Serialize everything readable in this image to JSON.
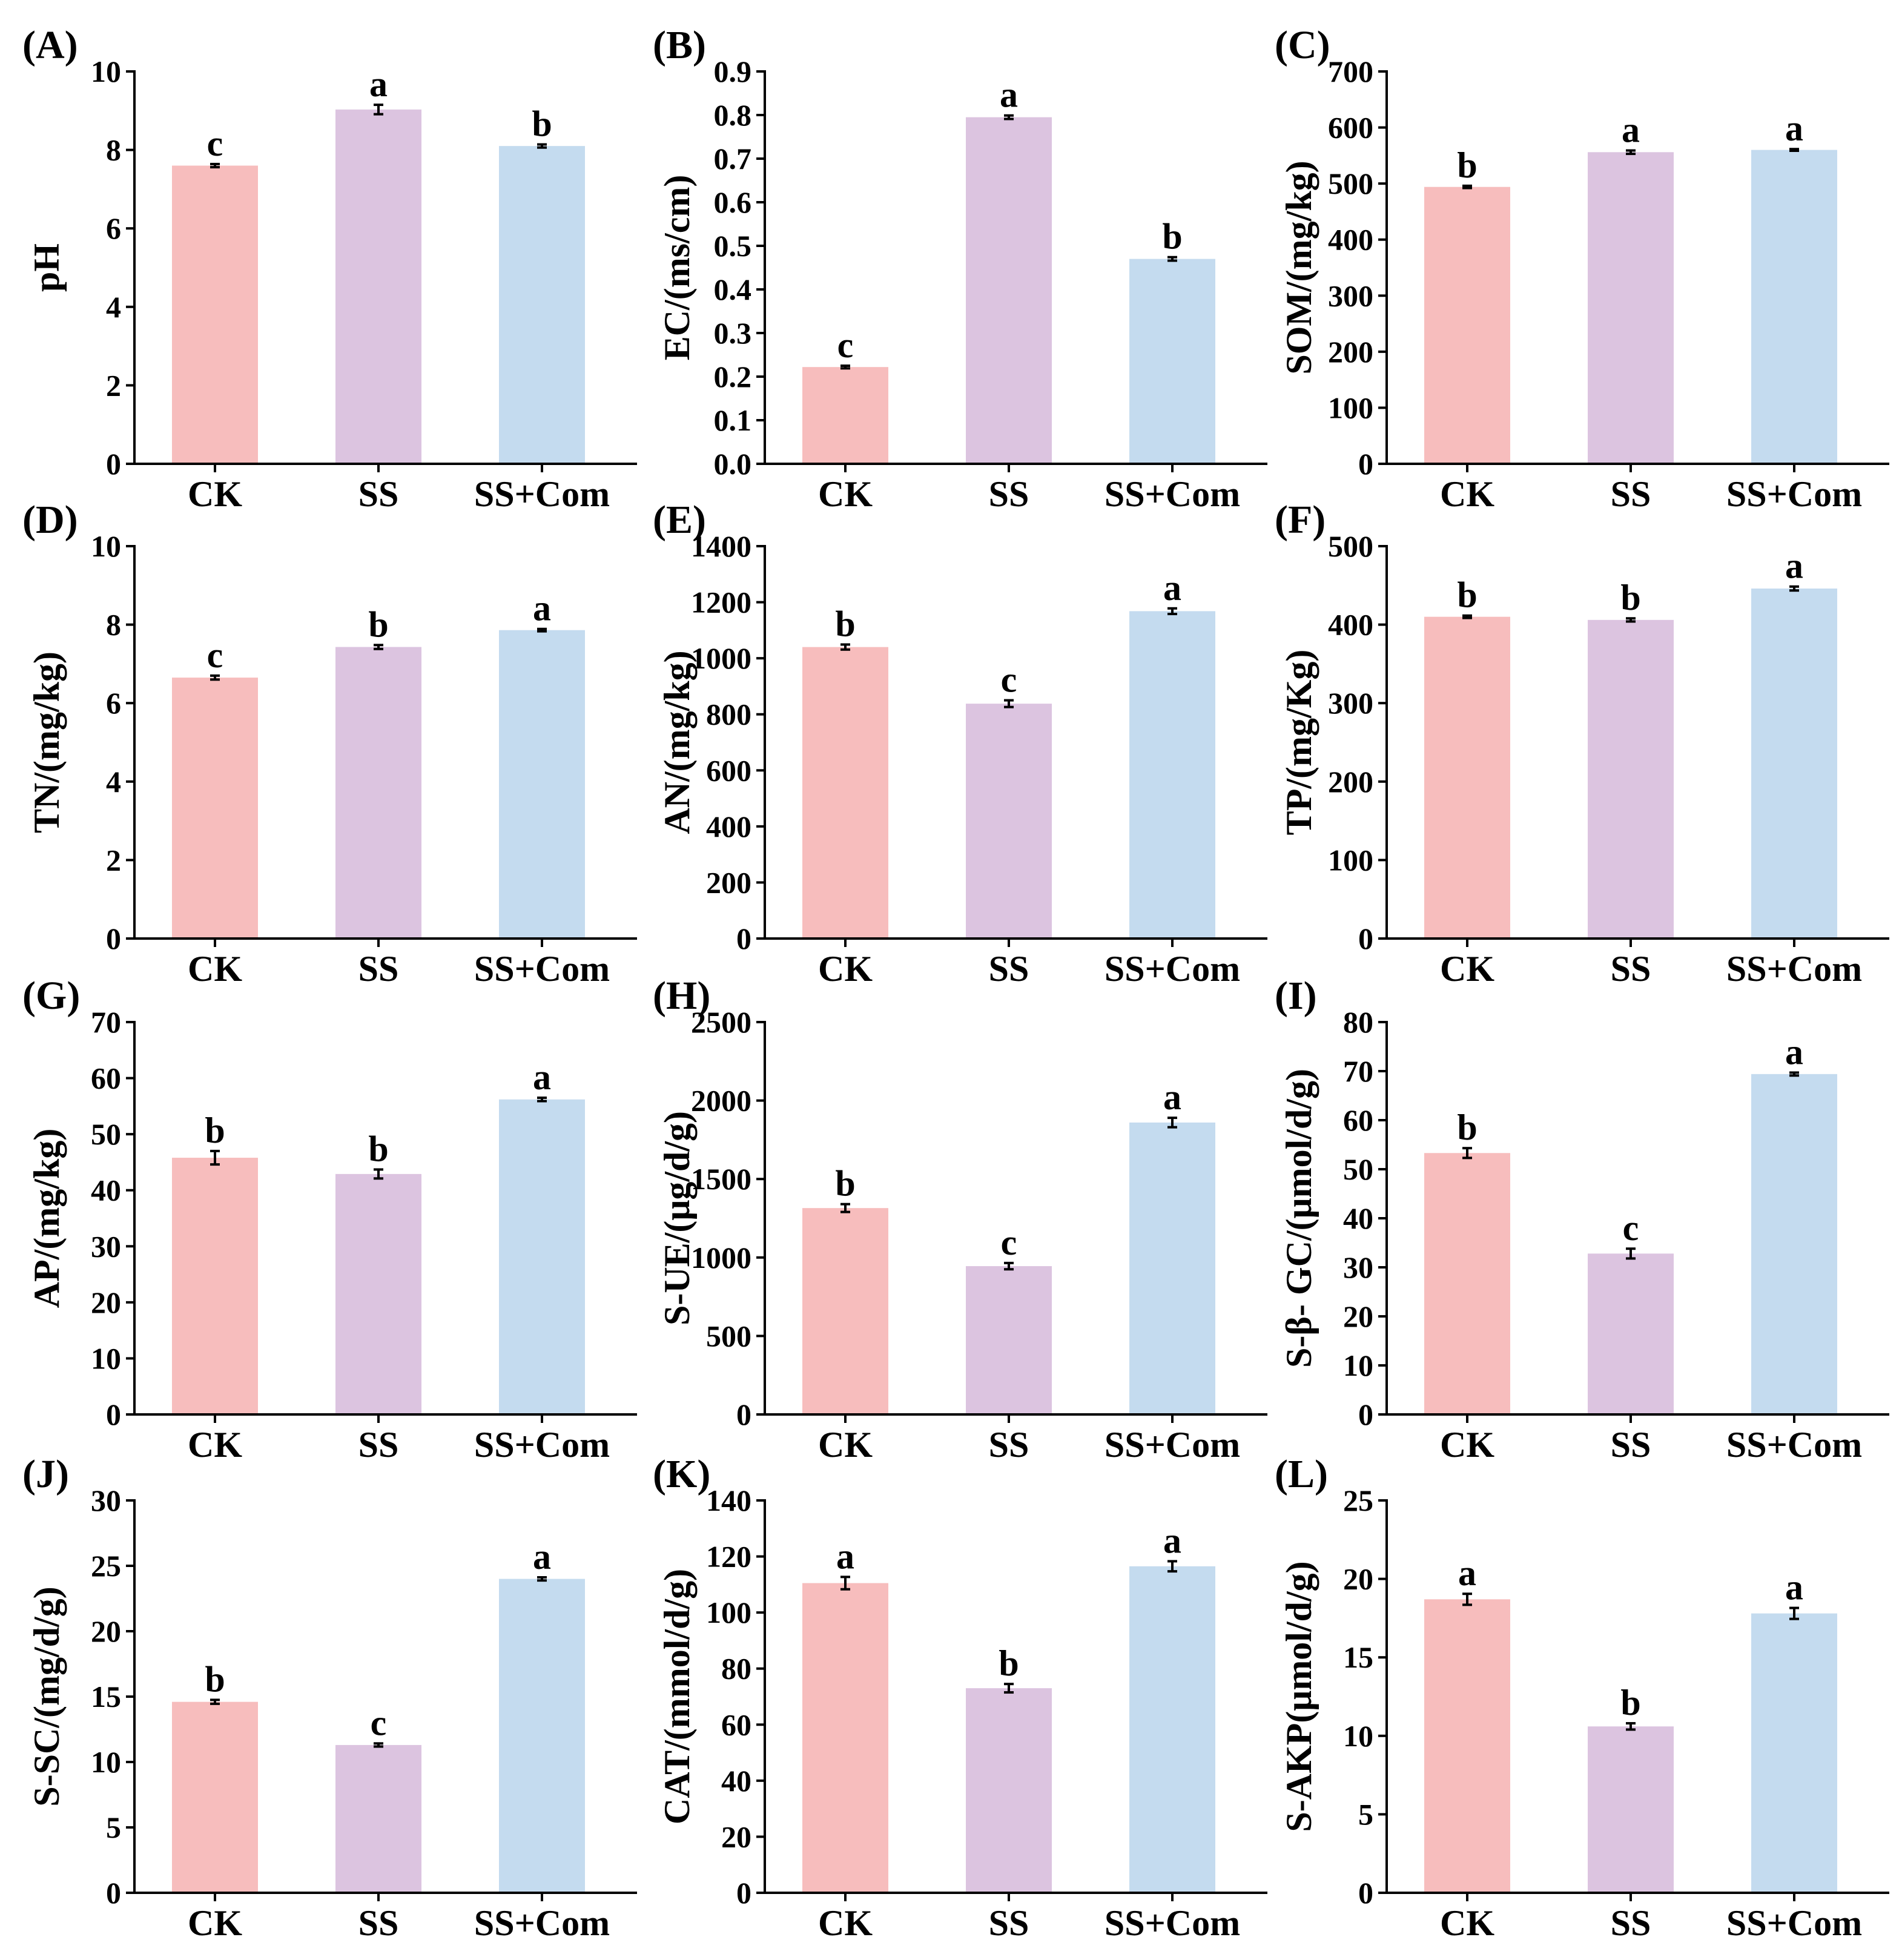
{
  "colors": {
    "CK": "#f7bdbd",
    "SS": "#dcc4e0",
    "SS+Com": "#c4dbef",
    "axis": "#000000"
  },
  "chart_data": [
    {
      "type": "bar",
      "panel": "(A)",
      "ylabel": "pH",
      "ylim": [
        0,
        10
      ],
      "yticks": [
        "0",
        "2",
        "4",
        "6",
        "8",
        "10"
      ],
      "categories": [
        "CK",
        "SS",
        "SS+Com"
      ],
      "values": [
        7.6,
        9.03,
        8.1
      ],
      "errors": [
        0.04,
        0.12,
        0.04
      ],
      "letters": [
        "c",
        "a",
        "b"
      ]
    },
    {
      "type": "bar",
      "panel": "(B)",
      "ylabel": "EC/(ms/cm)",
      "ylim": [
        0,
        0.9
      ],
      "yticks": [
        "0.0",
        "0.1",
        "0.2",
        "0.3",
        "0.4",
        "0.5",
        "0.6",
        "0.7",
        "0.8",
        "0.9"
      ],
      "categories": [
        "CK",
        "SS",
        "SS+Com"
      ],
      "values": [
        0.222,
        0.795,
        0.47
      ],
      "errors": [
        0.003,
        0.004,
        0.004
      ],
      "letters": [
        "c",
        "a",
        "b"
      ]
    },
    {
      "type": "bar",
      "panel": "(C)",
      "ylabel": "SOM/(mg/kg)",
      "ylim": [
        0,
        700
      ],
      "yticks": [
        "0",
        "100",
        "200",
        "300",
        "400",
        "500",
        "600",
        "700"
      ],
      "categories": [
        "CK",
        "SS",
        "SS+Com"
      ],
      "values": [
        494,
        556,
        560
      ],
      "errors": [
        2,
        3,
        1.5
      ],
      "letters": [
        "b",
        "a",
        "a"
      ]
    },
    {
      "type": "bar",
      "panel": "(D)",
      "ylabel": "TN/(mg/kg)",
      "ylim": [
        0,
        10
      ],
      "yticks": [
        "0",
        "2",
        "4",
        "6",
        "8",
        "10"
      ],
      "categories": [
        "CK",
        "SS",
        "SS+Com"
      ],
      "values": [
        6.65,
        7.43,
        7.86
      ],
      "errors": [
        0.05,
        0.05,
        0.03
      ],
      "letters": [
        "c",
        "b",
        "a"
      ]
    },
    {
      "type": "bar",
      "panel": "(E)",
      "ylabel": "AN/(mg/kg)",
      "ylim": [
        0,
        1400
      ],
      "yticks": [
        "0",
        "200",
        "400",
        "600",
        "800",
        "1000",
        "1200",
        "1400"
      ],
      "categories": [
        "CK",
        "SS",
        "SS+Com"
      ],
      "values": [
        1040,
        838,
        1168
      ],
      "errors": [
        9,
        12,
        10
      ],
      "letters": [
        "b",
        "c",
        "a"
      ]
    },
    {
      "type": "bar",
      "panel": "(F)",
      "ylabel": "TP/(mg/Kg)",
      "ylim": [
        0,
        500
      ],
      "yticks": [
        "0",
        "100",
        "200",
        "300",
        "400",
        "500"
      ],
      "categories": [
        "CK",
        "SS",
        "SS+Com"
      ],
      "values": [
        410,
        406,
        446
      ],
      "errors": [
        1.5,
        2,
        2.5
      ],
      "letters": [
        "b",
        "b",
        "a"
      ]
    },
    {
      "type": "bar",
      "panel": "(G)",
      "ylabel": "AP/(mg/kg)",
      "ylim": [
        0,
        70
      ],
      "yticks": [
        "0",
        "10",
        "20",
        "30",
        "40",
        "50",
        "60",
        "70"
      ],
      "categories": [
        "CK",
        "SS",
        "SS+Com"
      ],
      "values": [
        45.8,
        42.9,
        56.2
      ],
      "errors": [
        1.2,
        0.8,
        0.3
      ],
      "letters": [
        "b",
        "b",
        "a"
      ]
    },
    {
      "type": "bar",
      "panel": "(H)",
      "ylabel": "S-UE/(μg/d/g)",
      "ylim": [
        0,
        2500
      ],
      "yticks": [
        "0",
        "500",
        "1000",
        "1500",
        "2000",
        "2500"
      ],
      "categories": [
        "CK",
        "SS",
        "SS+Com"
      ],
      "values": [
        1315,
        945,
        1860
      ],
      "errors": [
        25,
        20,
        30
      ],
      "letters": [
        "b",
        "c",
        "a"
      ]
    },
    {
      "type": "bar",
      "panel": "(I)",
      "ylabel": "S-β- GC/(μmol/d/g)",
      "ylim": [
        0,
        80
      ],
      "yticks": [
        "0",
        "10",
        "20",
        "30",
        "40",
        "50",
        "60",
        "70",
        "80"
      ],
      "categories": [
        "CK",
        "SS",
        "SS+Com"
      ],
      "values": [
        53.3,
        32.8,
        69.4
      ],
      "errors": [
        1.0,
        1.0,
        0.3
      ],
      "letters": [
        "b",
        "c",
        "a"
      ]
    },
    {
      "type": "bar",
      "panel": "(J)",
      "ylabel": "S-SC/(mg/d/g)",
      "ylim": [
        0,
        30
      ],
      "yticks": [
        "0",
        "5",
        "10",
        "15",
        "20",
        "25",
        "30"
      ],
      "categories": [
        "CK",
        "SS",
        "SS+Com"
      ],
      "values": [
        14.6,
        11.3,
        24.0
      ],
      "errors": [
        0.15,
        0.12,
        0.12
      ],
      "letters": [
        "b",
        "c",
        "a"
      ]
    },
    {
      "type": "bar",
      "panel": "(K)",
      "ylabel": "CAT/(mmol/d/g)",
      "ylim": [
        0,
        140
      ],
      "yticks": [
        "0",
        "20",
        "40",
        "60",
        "80",
        "100",
        "120",
        "140"
      ],
      "categories": [
        "CK",
        "SS",
        "SS+Com"
      ],
      "values": [
        110.5,
        73.0,
        116.5
      ],
      "errors": [
        2.2,
        1.5,
        1.8
      ],
      "letters": [
        "a",
        "b",
        "a"
      ]
    },
    {
      "type": "bar",
      "panel": "(L)",
      "ylabel": "S-AKP(μmol/d/g)",
      "ylim": [
        0,
        25
      ],
      "yticks": [
        "0",
        "5",
        "10",
        "15",
        "20",
        "25"
      ],
      "categories": [
        "CK",
        "SS",
        "SS+Com"
      ],
      "values": [
        18.7,
        10.6,
        17.8
      ],
      "errors": [
        0.35,
        0.2,
        0.35
      ],
      "letters": [
        "a",
        "b",
        "a"
      ]
    }
  ]
}
